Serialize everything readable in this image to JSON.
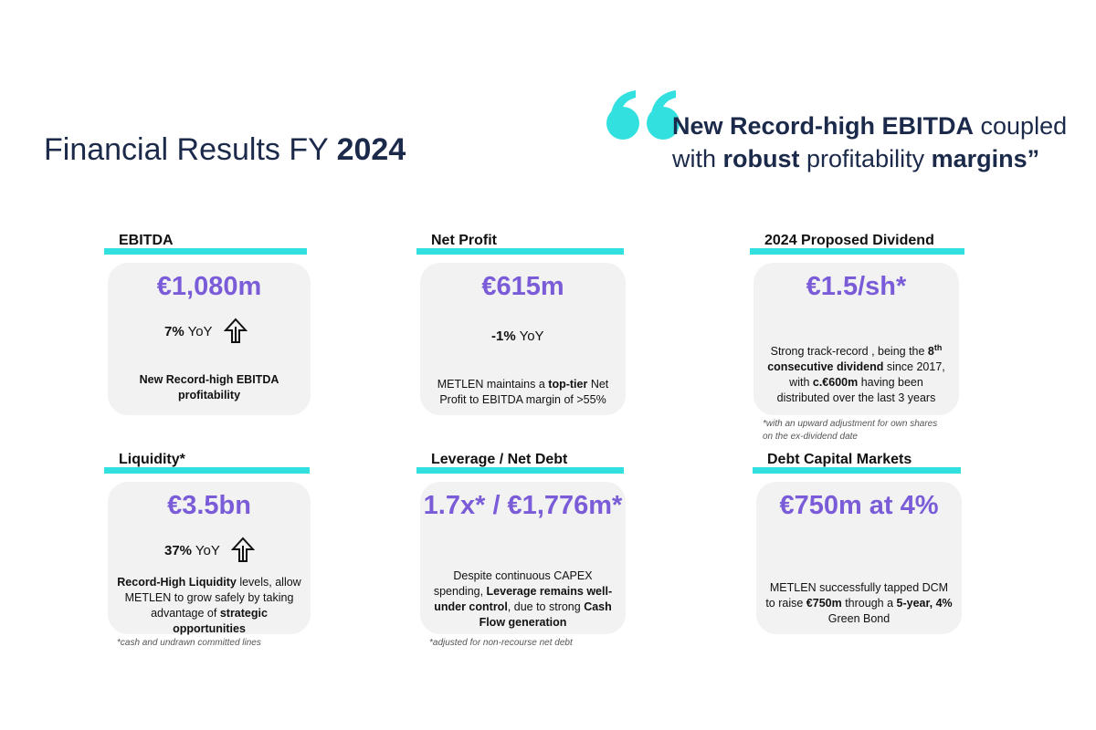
{
  "header": {
    "title": [
      {
        "text": "Financial Results FY ",
        "bold": false
      },
      {
        "text": "2024",
        "bold": true
      }
    ],
    "quote": [
      [
        {
          "text": "New Record-high EBITDA",
          "bold": true
        },
        {
          "text": " coupled",
          "bold": false
        }
      ],
      [
        {
          "text": "with ",
          "bold": false
        },
        {
          "text": "robust",
          "bold": true
        },
        {
          "text": " profitability ",
          "bold": false
        },
        {
          "text": "margins”",
          "bold": true
        }
      ]
    ]
  },
  "cards": [
    {
      "heading": "EBITDA",
      "value": "€1,080m",
      "yoy": [
        {
          "text": "7%",
          "bold": true
        },
        {
          "text": " YoY",
          "bold": false
        }
      ],
      "arrow": true,
      "description": [
        {
          "text": "New Record-high EBITDA profitability",
          "bold": true
        }
      ]
    },
    {
      "heading": "Net Profit",
      "value": "€615m",
      "yoy": [
        {
          "text": "-1%",
          "bold": true
        },
        {
          "text": " YoY",
          "bold": false
        }
      ],
      "arrow": false,
      "description": [
        {
          "text": "METLEN maintains a ",
          "bold": false
        },
        {
          "text": "top-tier",
          "bold": true
        },
        {
          "text": " Net Profit to EBITDA margin of >55%",
          "bold": false
        }
      ]
    },
    {
      "heading": "2024 Proposed Dividend",
      "value": "€1.5/sh*",
      "description": [
        {
          "text": "Strong track-record , being the ",
          "bold": false
        },
        {
          "text": "8",
          "bold": true
        },
        {
          "text": "th",
          "bold": true,
          "sup": true
        },
        {
          "text": " consecutive dividend",
          "bold": true
        },
        {
          "text": " since 2017, with ",
          "bold": false
        },
        {
          "text": "c.€600m",
          "bold": true
        },
        {
          "text": " having been distributed over the last 3 years",
          "bold": false
        }
      ],
      "footnote": "*with an upward adjustment for own shares on the ex-dividend date"
    },
    {
      "heading": "Liquidity*",
      "value": "€3.5bn",
      "yoy": [
        {
          "text": "37%",
          "bold": true
        },
        {
          "text": " YoY",
          "bold": false
        }
      ],
      "arrow": true,
      "description": [
        {
          "text": "Record-High Liquidity",
          "bold": true
        },
        {
          "text": " levels, allow METLEN to grow safely by taking advantage of ",
          "bold": false
        },
        {
          "text": "strategic opportunities",
          "bold": true
        }
      ],
      "footnote": "*cash and undrawn committed lines"
    },
    {
      "heading": "Leverage / Net Debt",
      "value": "1.7x* / €1,776m*",
      "description": [
        {
          "text": "Despite continuous CAPEX spending, ",
          "bold": false
        },
        {
          "text": "Leverage remains well-under control",
          "bold": true
        },
        {
          "text": ", due to strong ",
          "bold": false
        },
        {
          "text": "Cash Flow generation",
          "bold": true
        }
      ],
      "footnote": "*adjusted for non-recourse net debt"
    },
    {
      "heading": "Debt Capital Markets",
      "value": "€750m at 4%",
      "description": [
        {
          "text": "METLEN successfully tapped DCM to raise ",
          "bold": false
        },
        {
          "text": "€750m",
          "bold": true
        },
        {
          "text": " through a ",
          "bold": false
        },
        {
          "text": "5-year, 4%",
          "bold": true
        },
        {
          "text": " Green Bond",
          "bold": false
        }
      ]
    }
  ]
}
